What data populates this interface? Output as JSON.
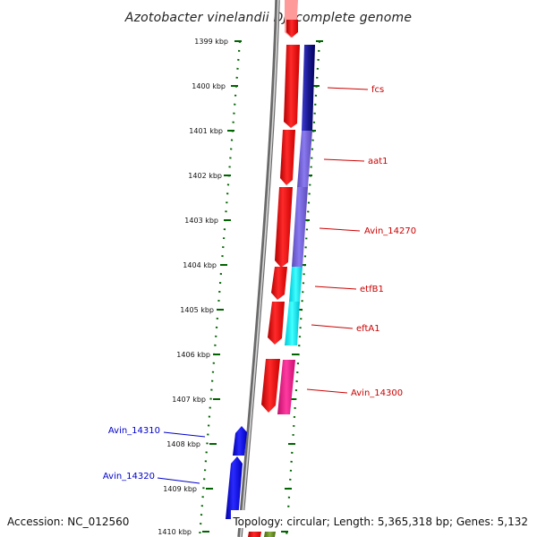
{
  "title": "Azotobacter vinelandii DJ, complete genome",
  "footer": {
    "accession": "Accession: NC_012560",
    "topology": "Topology: circular; Length: 5,365,318 bp; Genes: 5,132"
  },
  "ticks": [
    "1399 kbp",
    "1400 kbp",
    "1401 kbp",
    "1402 kbp",
    "1403 kbp",
    "1404 kbp",
    "1405 kbp",
    "1406 kbp",
    "1407 kbp",
    "1408 kbp",
    "1409 kbp",
    "1410 kbp"
  ],
  "gene_labels_right": [
    "fcs",
    "aat1",
    "Avin_14270",
    "etfB1",
    "eftA1",
    "Avin_14300"
  ],
  "gene_labels_left": [
    "Avin_14310",
    "Avin_14320"
  ],
  "colors": {
    "forward_gene": "#ff0000",
    "reverse_gene": "#0000ee",
    "fcs": "#000080",
    "aat1": "#7b68ee",
    "Avin_14270": "#6a5acd",
    "etfB1": "#00ffff",
    "eftA1": "#00e5ee",
    "Avin_14300": "#ff1493",
    "label_right": "#cc0000",
    "label_left": "#0000cc",
    "tick": "#006400"
  }
}
